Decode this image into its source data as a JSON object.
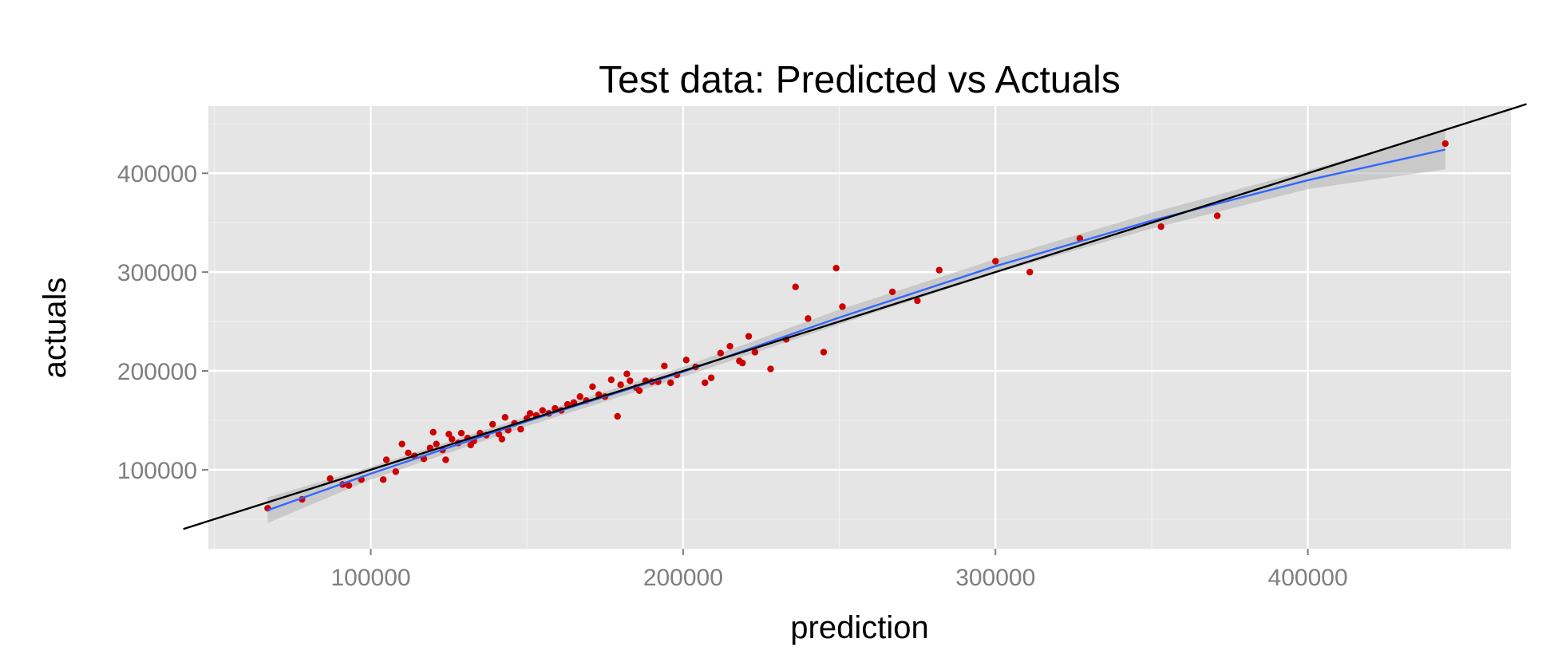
{
  "chart_data": {
    "type": "scatter",
    "title": "Test data: Predicted vs Actuals",
    "xlabel": "prediction",
    "ylabel": "actuals",
    "xlim": [
      48000,
      465000
    ],
    "ylim": [
      20000,
      468000
    ],
    "xticks": [
      100000,
      200000,
      300000,
      400000
    ],
    "xtick_labels": [
      "100000",
      "200000",
      "300000",
      "400000"
    ],
    "yticks": [
      100000,
      200000,
      300000,
      400000
    ],
    "ytick_labels": [
      "100000",
      "200000",
      "300000",
      "400000"
    ],
    "grid": true,
    "colors": {
      "panel": "#e5e5e5",
      "grid_major": "#ffffff",
      "grid_minor": "#f2f2f2",
      "points": "#cc0000",
      "smooth": "#3366ff",
      "confidence_band": "#b3b3b3",
      "reference_line": "#000000"
    },
    "points": [
      {
        "x": 67000,
        "y": 61000
      },
      {
        "x": 78000,
        "y": 70000
      },
      {
        "x": 87000,
        "y": 91000
      },
      {
        "x": 91000,
        "y": 85000
      },
      {
        "x": 93000,
        "y": 84000
      },
      {
        "x": 97000,
        "y": 90000
      },
      {
        "x": 104000,
        "y": 90000
      },
      {
        "x": 105000,
        "y": 110000
      },
      {
        "x": 108000,
        "y": 98000
      },
      {
        "x": 110000,
        "y": 126000
      },
      {
        "x": 112000,
        "y": 117000
      },
      {
        "x": 114000,
        "y": 114000
      },
      {
        "x": 117000,
        "y": 111000
      },
      {
        "x": 119000,
        "y": 122000
      },
      {
        "x": 120000,
        "y": 138000
      },
      {
        "x": 121000,
        "y": 126000
      },
      {
        "x": 123000,
        "y": 120000
      },
      {
        "x": 124000,
        "y": 110000
      },
      {
        "x": 125000,
        "y": 136000
      },
      {
        "x": 126000,
        "y": 131000
      },
      {
        "x": 128000,
        "y": 127000
      },
      {
        "x": 129000,
        "y": 137000
      },
      {
        "x": 131000,
        "y": 132000
      },
      {
        "x": 132000,
        "y": 125000
      },
      {
        "x": 133000,
        "y": 129000
      },
      {
        "x": 135000,
        "y": 137000
      },
      {
        "x": 137000,
        "y": 135000
      },
      {
        "x": 139000,
        "y": 146000
      },
      {
        "x": 141000,
        "y": 136000
      },
      {
        "x": 142000,
        "y": 131000
      },
      {
        "x": 143000,
        "y": 153000
      },
      {
        "x": 144000,
        "y": 140000
      },
      {
        "x": 146000,
        "y": 147000
      },
      {
        "x": 148000,
        "y": 141000
      },
      {
        "x": 150000,
        "y": 152000
      },
      {
        "x": 151000,
        "y": 157000
      },
      {
        "x": 153000,
        "y": 155000
      },
      {
        "x": 155000,
        "y": 160000
      },
      {
        "x": 157000,
        "y": 157000
      },
      {
        "x": 159000,
        "y": 162000
      },
      {
        "x": 161000,
        "y": 160000
      },
      {
        "x": 163000,
        "y": 166000
      },
      {
        "x": 165000,
        "y": 168000
      },
      {
        "x": 167000,
        "y": 174000
      },
      {
        "x": 169000,
        "y": 170000
      },
      {
        "x": 171000,
        "y": 184000
      },
      {
        "x": 173000,
        "y": 176000
      },
      {
        "x": 175000,
        "y": 174000
      },
      {
        "x": 177000,
        "y": 191000
      },
      {
        "x": 179000,
        "y": 154000
      },
      {
        "x": 180000,
        "y": 186000
      },
      {
        "x": 182000,
        "y": 197000
      },
      {
        "x": 183000,
        "y": 190000
      },
      {
        "x": 185000,
        "y": 183000
      },
      {
        "x": 186000,
        "y": 180000
      },
      {
        "x": 188000,
        "y": 190000
      },
      {
        "x": 190000,
        "y": 189000
      },
      {
        "x": 192000,
        "y": 189000
      },
      {
        "x": 194000,
        "y": 205000
      },
      {
        "x": 196000,
        "y": 188000
      },
      {
        "x": 198000,
        "y": 196000
      },
      {
        "x": 201000,
        "y": 211000
      },
      {
        "x": 204000,
        "y": 204000
      },
      {
        "x": 207000,
        "y": 188000
      },
      {
        "x": 209000,
        "y": 193000
      },
      {
        "x": 212000,
        "y": 218000
      },
      {
        "x": 215000,
        "y": 225000
      },
      {
        "x": 218000,
        "y": 210000
      },
      {
        "x": 219000,
        "y": 208000
      },
      {
        "x": 221000,
        "y": 235000
      },
      {
        "x": 223000,
        "y": 219000
      },
      {
        "x": 228000,
        "y": 202000
      },
      {
        "x": 233000,
        "y": 232000
      },
      {
        "x": 236000,
        "y": 285000
      },
      {
        "x": 240000,
        "y": 253000
      },
      {
        "x": 245000,
        "y": 219000
      },
      {
        "x": 249000,
        "y": 304000
      },
      {
        "x": 251000,
        "y": 265000
      },
      {
        "x": 267000,
        "y": 280000
      },
      {
        "x": 275000,
        "y": 271000
      },
      {
        "x": 282000,
        "y": 302000
      },
      {
        "x": 300000,
        "y": 311000
      },
      {
        "x": 311000,
        "y": 300000
      },
      {
        "x": 327000,
        "y": 334000
      },
      {
        "x": 353000,
        "y": 346000
      },
      {
        "x": 371000,
        "y": 357000
      },
      {
        "x": 444000,
        "y": 430000
      }
    ],
    "smooth": [
      {
        "x": 67000,
        "y": 59000
      },
      {
        "x": 100000,
        "y": 96000
      },
      {
        "x": 150000,
        "y": 149000
      },
      {
        "x": 200000,
        "y": 199000
      },
      {
        "x": 250000,
        "y": 254000
      },
      {
        "x": 300000,
        "y": 306000
      },
      {
        "x": 350000,
        "y": 352000
      },
      {
        "x": 400000,
        "y": 393000
      },
      {
        "x": 444000,
        "y": 424000
      }
    ],
    "smooth_band": [
      {
        "x": 67000,
        "lo": 46000,
        "hi": 72000
      },
      {
        "x": 100000,
        "lo": 90000,
        "hi": 103000
      },
      {
        "x": 150000,
        "lo": 144000,
        "hi": 154000
      },
      {
        "x": 200000,
        "lo": 194000,
        "hi": 204000
      },
      {
        "x": 250000,
        "lo": 247000,
        "hi": 262000
      },
      {
        "x": 300000,
        "lo": 299000,
        "hi": 313000
      },
      {
        "x": 350000,
        "lo": 344000,
        "hi": 360000
      },
      {
        "x": 400000,
        "lo": 384000,
        "hi": 403000
      },
      {
        "x": 444000,
        "lo": 404000,
        "hi": 443000
      }
    ],
    "reference_line": {
      "slope": 1,
      "intercept": 0
    }
  }
}
